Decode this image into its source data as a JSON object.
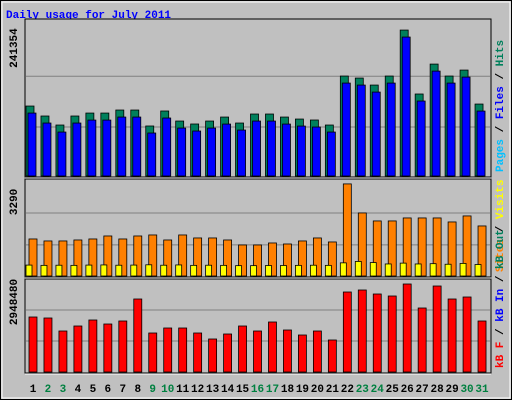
{
  "title": "Daily usage for July 2011",
  "legend_separator": " / ",
  "chart_data": [
    {
      "type": "bar",
      "ylim": [
        0,
        258000
      ],
      "yticks": [
        241354
      ],
      "grid_lines": [
        81000,
        165000
      ],
      "legend": [
        {
          "label": "Pages",
          "color": "#00c0ff"
        },
        {
          "label": "Files",
          "color": "#0000ff"
        },
        {
          "label": "Hits",
          "color": "#00805c"
        }
      ],
      "series": [
        {
          "name": "Hits",
          "color": "#00805c",
          "values": [
            115700,
            99200,
            84300,
            99200,
            104100,
            104100,
            109100,
            109100,
            82700,
            107500,
            90900,
            86000,
            90900,
            97500,
            87600,
            102500,
            102500,
            97500,
            94200,
            92600,
            84300,
            165300,
            162000,
            150400,
            165300,
            241354,
            135600,
            185100,
            165300,
            175200,
            119000
          ]
        },
        {
          "name": "Files",
          "color": "#0000ff",
          "values": [
            104100,
            87600,
            72700,
            87600,
            92500,
            92500,
            97500,
            97500,
            71100,
            95900,
            79300,
            74400,
            79300,
            85900,
            76000,
            90900,
            90900,
            85900,
            82600,
            81000,
            72700,
            153700,
            150400,
            138800,
            153700,
            229800,
            124000,
            173500,
            153700,
            163600,
            107400
          ]
        }
      ]
    },
    {
      "type": "bar",
      "ylim": [
        0,
        3430
      ],
      "yticks": [
        3290
      ],
      "grid_lines": [
        1110,
        2250
      ],
      "legend": [
        {
          "label": "Sites",
          "color": "#ff8000"
        },
        {
          "label": "Visits",
          "color": "#ffff00"
        }
      ],
      "series": [
        {
          "name": "Sites",
          "color": "#ff8000",
          "values": [
            1323,
            1252,
            1252,
            1287,
            1323,
            1430,
            1323,
            1430,
            1466,
            1287,
            1466,
            1359,
            1359,
            1287,
            1109,
            1109,
            1180,
            1144,
            1252,
            1359,
            1216,
            3290,
            2253,
            1967,
            1967,
            2074,
            2074,
            2074,
            1931,
            2146,
            1788
          ]
        },
        {
          "name": "Visits",
          "color": "#ffff00",
          "values": [
            390,
            380,
            385,
            380,
            390,
            395,
            385,
            390,
            400,
            385,
            395,
            380,
            385,
            380,
            370,
            370,
            375,
            375,
            380,
            385,
            380,
            470,
            520,
            480,
            430,
            460,
            430,
            440,
            420,
            450,
            410
          ]
        }
      ]
    },
    {
      "type": "bar",
      "ylim": [
        0,
        3082500
      ],
      "yticks": [
        2948480
      ],
      "grid_lines": [
        1038600,
        2077000
      ],
      "legend": [
        {
          "label": "kB F",
          "color": "#ff0000"
        },
        {
          "label": "kB In",
          "color": "#0000ff"
        },
        {
          "label": "kB Out",
          "color": "#00805c"
        }
      ],
      "categories": [
        "1",
        "2",
        "3",
        "4",
        "5",
        "6",
        "7",
        "8",
        "9",
        "10",
        "11",
        "12",
        "13",
        "14",
        "15",
        "16",
        "17",
        "18",
        "19",
        "20",
        "21",
        "22",
        "23",
        "24",
        "25",
        "26",
        "27",
        "28",
        "29",
        "30",
        "31"
      ],
      "category_colors": [
        "#000000",
        "#008040",
        "#008040",
        "#000000",
        "#000000",
        "#000000",
        "#000000",
        "#000000",
        "#008040",
        "#008040",
        "#000000",
        "#000000",
        "#000000",
        "#000000",
        "#000000",
        "#008040",
        "#008040",
        "#000000",
        "#000000",
        "#000000",
        "#000000",
        "#000000",
        "#008040",
        "#008040",
        "#000000",
        "#000000",
        "#000000",
        "#000000",
        "#000000",
        "#008040",
        "#008040"
      ],
      "series": [
        {
          "name": "kB F",
          "color": "#ff0000",
          "values": [
            1842800,
            1809300,
            1373700,
            1541200,
            1742300,
            1608200,
            1708800,
            2445900,
            1306700,
            1474200,
            1474200,
            1306700,
            1105700,
            1273200,
            1541200,
            1373700,
            1675300,
            1407200,
            1239700,
            1373700,
            1072200,
            2680400,
            2747400,
            2613400,
            2546400,
            2948480,
            2144300,
            2881400,
            2445900,
            2512900,
            1708800
          ]
        }
      ]
    }
  ]
}
